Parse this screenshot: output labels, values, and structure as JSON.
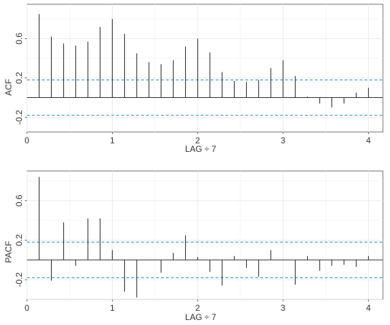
{
  "chart_data": [
    {
      "type": "bar",
      "subtype": "acf-stem",
      "ylabel": "ACF",
      "xlabel": "LAG ÷ 7",
      "xlim": [
        0,
        4.17
      ],
      "ylim": [
        -0.35,
        0.95
      ],
      "xticks": [
        0,
        1,
        2,
        3,
        4
      ],
      "yticks": [
        -0.2,
        0.2,
        0.6
      ],
      "ytick_labels": [
        "-0.2",
        "0.2",
        "0.6"
      ],
      "confidence_bound": 0.18,
      "grid": true,
      "x": [
        0.143,
        0.286,
        0.429,
        0.571,
        0.714,
        0.857,
        1.0,
        1.143,
        1.286,
        1.429,
        1.571,
        1.714,
        1.857,
        2.0,
        2.143,
        2.286,
        2.429,
        2.571,
        2.714,
        2.857,
        3.0,
        3.143,
        3.286,
        3.429,
        3.571,
        3.714,
        3.857,
        4.0
      ],
      "values": [
        0.85,
        0.62,
        0.55,
        0.53,
        0.57,
        0.72,
        0.8,
        0.65,
        0.45,
        0.36,
        0.34,
        0.38,
        0.52,
        0.6,
        0.46,
        0.26,
        0.17,
        0.16,
        0.18,
        0.3,
        0.38,
        0.22,
        0.01,
        -0.06,
        -0.1,
        -0.06,
        0.05,
        0.1
      ]
    },
    {
      "type": "bar",
      "subtype": "pacf-stem",
      "ylabel": "PACF",
      "xlabel": "LAG ÷ 7",
      "xlim": [
        0,
        4.17
      ],
      "ylim": [
        -0.4,
        0.9
      ],
      "xticks": [
        0,
        1,
        2,
        3,
        4
      ],
      "yticks": [
        -0.2,
        0.2,
        0.6
      ],
      "ytick_labels": [
        "-0.2",
        "0.2",
        "0.6"
      ],
      "confidence_bound": 0.18,
      "grid": true,
      "x": [
        0.143,
        0.286,
        0.429,
        0.571,
        0.714,
        0.857,
        1.0,
        1.143,
        1.286,
        1.429,
        1.571,
        1.714,
        1.857,
        2.0,
        2.143,
        2.286,
        2.429,
        2.571,
        2.714,
        2.857,
        3.0,
        3.143,
        3.286,
        3.429,
        3.571,
        3.714,
        3.857,
        4.0
      ],
      "values": [
        0.84,
        -0.21,
        0.38,
        -0.06,
        0.42,
        0.42,
        0.1,
        -0.32,
        -0.38,
        0.0,
        -0.13,
        0.07,
        0.25,
        0.03,
        -0.12,
        -0.26,
        0.04,
        -0.08,
        -0.17,
        0.1,
        0.0,
        -0.25,
        0.04,
        -0.11,
        -0.06,
        -0.05,
        -0.07,
        0.04
      ]
    }
  ],
  "colors": {
    "stem": "#333333",
    "bound": "#4a9fd6",
    "zero_line": "#333333",
    "grid": "#ebebeb",
    "frame": "#4d4d4d"
  }
}
